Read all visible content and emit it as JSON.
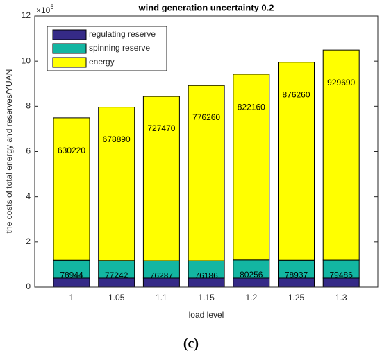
{
  "chart_data": {
    "type": "stacked_bar",
    "title": "wind generation uncertainty 0.2",
    "xlabel": "load level",
    "ylabel": "the costs of total energy and reserves/YUAN",
    "y_multiplier": "×10",
    "y_multiplier_exp": "5",
    "caption": "(c)",
    "categories": [
      "1",
      "1.05",
      "1.1",
      "1.15",
      "1.2",
      "1.25",
      "1.3"
    ],
    "series": [
      {
        "name": "regulating reserve",
        "color": "#352a87",
        "values": [
          40000,
          40000,
          40000,
          40000,
          40000,
          40000,
          40000
        ]
      },
      {
        "name": "spinning reserve",
        "color": "#13b6a2",
        "values": [
          78944,
          77242,
          76287,
          76186,
          80256,
          78937,
          79486
        ]
      },
      {
        "name": "energy",
        "color": "#ffff00",
        "values": [
          630220,
          678890,
          727470,
          776260,
          822160,
          876260,
          929690
        ]
      }
    ],
    "labeled_series": [
      1,
      2
    ],
    "ylim": [
      0,
      1200000
    ],
    "yticks": [
      {
        "value": 0,
        "label": "0"
      },
      {
        "value": 200000,
        "label": "2"
      },
      {
        "value": 400000,
        "label": "4"
      },
      {
        "value": 600000,
        "label": "6"
      },
      {
        "value": 800000,
        "label": "8"
      },
      {
        "value": 1000000,
        "label": "10"
      },
      {
        "value": 1200000,
        "label": "12"
      }
    ],
    "legend": "upper left",
    "grid": false
  }
}
